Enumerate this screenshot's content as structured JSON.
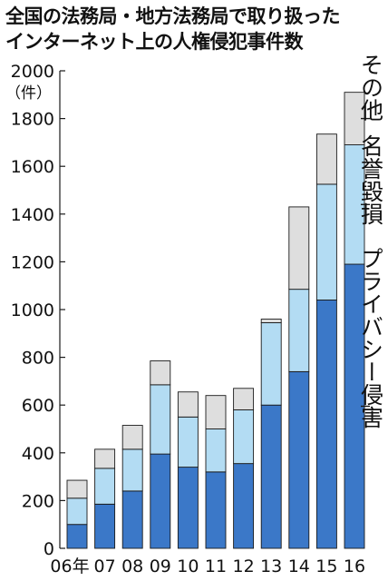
{
  "title_lines": [
    "全国の法務局・地方法務局で取り扱った",
    "インターネット上の人権侵犯事件数"
  ],
  "colors": {
    "privacy": "#3b78c8",
    "defamation": "#b3dcf3",
    "other": "#dedede",
    "stroke": "#1a1a1a"
  },
  "chart_data": {
    "type": "bar",
    "stacked": true,
    "title": "全国の法務局・地方法務局で取り扱ったインターネット上の人権侵犯事件数",
    "unit_label": "（件）",
    "categories": [
      "06年",
      "07",
      "08",
      "09",
      "10",
      "11",
      "12",
      "13",
      "14",
      "15",
      "16"
    ],
    "series": [
      {
        "name": "プライバシー侵害",
        "values": [
          100,
          185,
          240,
          395,
          340,
          320,
          355,
          600,
          740,
          1040,
          1190
        ]
      },
      {
        "name": "名誉毀損",
        "values": [
          110,
          150,
          175,
          290,
          210,
          180,
          225,
          345,
          345,
          485,
          500
        ]
      },
      {
        "name": "その他",
        "values": [
          75,
          80,
          100,
          100,
          105,
          140,
          90,
          15,
          345,
          210,
          220
        ]
      }
    ],
    "y_ticks": [
      0,
      200,
      400,
      600,
      800,
      1000,
      1200,
      1400,
      1600,
      1800,
      2000
    ],
    "ylim": [
      0,
      2000
    ],
    "grid": false,
    "legend_placement": "right, labels beside the last bar"
  }
}
